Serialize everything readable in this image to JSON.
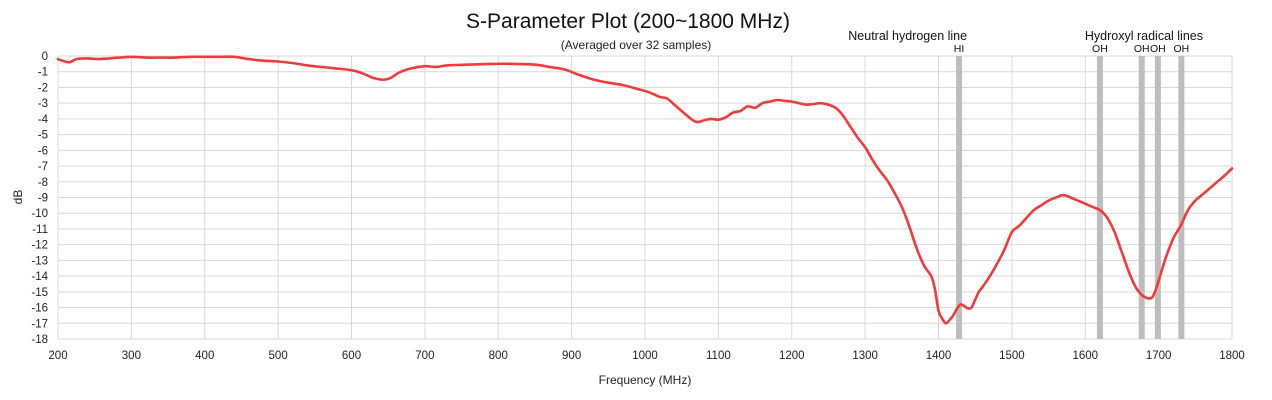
{
  "chart_data": {
    "type": "line",
    "title": "S-Parameter Plot (200~1800 MHz)",
    "subtitle": "(Averaged over 32 samples)",
    "xlabel": "Frequency (MHz)",
    "ylabel": "dB",
    "xlim": [
      200,
      1800
    ],
    "ylim": [
      -18,
      0
    ],
    "x_ticks": [
      200,
      300,
      400,
      500,
      600,
      700,
      800,
      900,
      1000,
      1100,
      1200,
      1300,
      1400,
      1500,
      1600,
      1700,
      1800
    ],
    "y_ticks": [
      0,
      -1,
      -2,
      -3,
      -4,
      -5,
      -6,
      -7,
      -8,
      -9,
      -10,
      -11,
      -12,
      -13,
      -14,
      -15,
      -16,
      -17,
      -18
    ],
    "grid": true,
    "series": [
      {
        "name": "S-Parameter",
        "color": "#ef3b3b",
        "x": [
          200,
          215,
          225,
          240,
          255,
          270,
          285,
          300,
          320,
          340,
          360,
          380,
          400,
          420,
          440,
          460,
          480,
          500,
          520,
          540,
          560,
          580,
          600,
          615,
          630,
          645,
          655,
          665,
          680,
          700,
          715,
          730,
          760,
          790,
          820,
          850,
          870,
          890,
          910,
          930,
          950,
          970,
          990,
          1005,
          1020,
          1030,
          1040,
          1050,
          1060,
          1070,
          1080,
          1090,
          1100,
          1110,
          1120,
          1130,
          1140,
          1150,
          1160,
          1170,
          1180,
          1190,
          1200,
          1210,
          1220,
          1230,
          1240,
          1250,
          1260,
          1270,
          1280,
          1290,
          1300,
          1310,
          1320,
          1330,
          1340,
          1350,
          1360,
          1370,
          1380,
          1390,
          1395,
          1400,
          1405,
          1410,
          1415,
          1420,
          1425,
          1430,
          1435,
          1440,
          1445,
          1450,
          1455,
          1460,
          1470,
          1480,
          1490,
          1500,
          1510,
          1520,
          1530,
          1540,
          1550,
          1560,
          1570,
          1580,
          1590,
          1600,
          1610,
          1620,
          1630,
          1640,
          1650,
          1660,
          1670,
          1680,
          1690,
          1695,
          1700,
          1710,
          1720,
          1730,
          1740,
          1750,
          1760,
          1770,
          1780,
          1790,
          1800
        ],
        "values": [
          -0.2,
          -0.4,
          -0.2,
          -0.15,
          -0.2,
          -0.15,
          -0.1,
          -0.05,
          -0.1,
          -0.1,
          -0.1,
          -0.05,
          -0.05,
          -0.05,
          -0.05,
          -0.2,
          -0.3,
          -0.35,
          -0.45,
          -0.6,
          -0.7,
          -0.8,
          -0.9,
          -1.1,
          -1.4,
          -1.5,
          -1.35,
          -1.05,
          -0.8,
          -0.65,
          -0.7,
          -0.6,
          -0.55,
          -0.5,
          -0.5,
          -0.55,
          -0.7,
          -0.85,
          -1.2,
          -1.5,
          -1.7,
          -1.85,
          -2.1,
          -2.3,
          -2.6,
          -2.7,
          -3.1,
          -3.5,
          -3.9,
          -4.2,
          -4.1,
          -4.0,
          -4.05,
          -3.9,
          -3.6,
          -3.5,
          -3.2,
          -3.3,
          -3.0,
          -2.9,
          -2.8,
          -2.85,
          -2.9,
          -3.0,
          -3.1,
          -3.05,
          -3.0,
          -3.1,
          -3.3,
          -3.8,
          -4.5,
          -5.2,
          -5.8,
          -6.6,
          -7.3,
          -7.9,
          -8.7,
          -9.6,
          -10.8,
          -12.2,
          -13.3,
          -14.0,
          -14.8,
          -16.2,
          -16.7,
          -17.0,
          -16.8,
          -16.5,
          -16.1,
          -15.8,
          -15.9,
          -16.05,
          -16.0,
          -15.5,
          -15.0,
          -14.7,
          -14.0,
          -13.2,
          -12.3,
          -11.2,
          -10.8,
          -10.3,
          -9.8,
          -9.5,
          -9.2,
          -9.0,
          -8.85,
          -9.0,
          -9.2,
          -9.4,
          -9.6,
          -9.8,
          -10.3,
          -11.2,
          -12.5,
          -13.8,
          -14.8,
          -15.3,
          -15.4,
          -15.0,
          -14.3,
          -12.8,
          -11.6,
          -10.8,
          -9.8,
          -9.2,
          -8.8,
          -8.4,
          -8.0,
          -7.6,
          -7.15
        ]
      }
    ],
    "annotations": [
      {
        "group_label": "Neutral hydrogen line",
        "group_x": 1358,
        "lines": [
          {
            "label": "HI",
            "freq": 1428
          }
        ]
      },
      {
        "group_label": "Hydroxyl  radical lines",
        "group_x": 1680,
        "lines": [
          {
            "label": "OH",
            "freq": 1620
          },
          {
            "label": "OH",
            "freq": 1677
          },
          {
            "label": "OH",
            "freq": 1699
          },
          {
            "label": "OH",
            "freq": 1731
          }
        ]
      }
    ]
  }
}
